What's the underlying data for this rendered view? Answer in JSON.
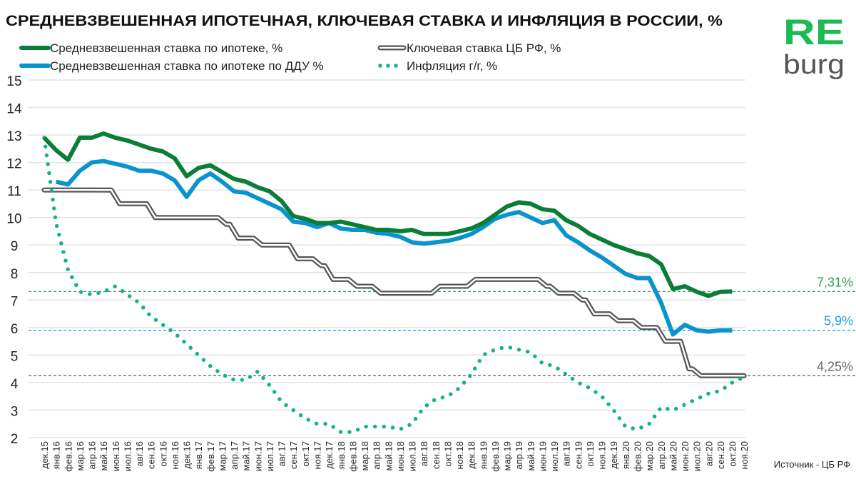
{
  "chart_data": {
    "type": "line",
    "title": "СРЕДНЕВЗВЕШЕННАЯ ИПОТЕЧНАЯ, КЛЮЧЕВАЯ СТАВКА И ИНФЛЯЦИЯ В РОССИИ, %",
    "source": "Источник  - ЦБ РФ",
    "logo": {
      "top": "RE",
      "bottom": "burg",
      "top_color": "#1db954",
      "bottom_color": "#555555"
    },
    "ylim": [
      2,
      15
    ],
    "yticks": [
      "2",
      "3",
      "4",
      "5",
      "6",
      "7",
      "8",
      "9",
      "10",
      "11",
      "12",
      "13",
      "14",
      "15"
    ],
    "grid": true,
    "legend_placement": "top-left",
    "categories": [
      "дек.15",
      "янв.16",
      "фев.16",
      "мар.16",
      "апр.16",
      "май.16",
      "июн.16",
      "июл.16",
      "авг.16",
      "сен.16",
      "окт.16",
      "ноя.16",
      "дек.16",
      "янв.17",
      "фев.17",
      "мар.17",
      "апр.17",
      "май.17",
      "июн.17",
      "июл.17",
      "авг.17",
      "сен.17",
      "окт.17",
      "ноя.17",
      "дек.17",
      "янв.18",
      "фев.18",
      "мар.18",
      "апр.18",
      "май.18",
      "июн.18",
      "июл.18",
      "авг.18",
      "сен.18",
      "окт.18",
      "ноя.18",
      "дек.18",
      "янв.19",
      "фев.19",
      "мар.19",
      "апр.19",
      "май.19",
      "июн.19",
      "июл.19",
      "авг.19",
      "сен.19",
      "окт.19",
      "ноя.19",
      "дек.19",
      "янв.20",
      "фев.20",
      "мар.20",
      "апр.20",
      "май.20",
      "июн.20",
      "июл.20",
      "авг.20",
      "сен.20",
      "окт.20",
      "ноя.20"
    ],
    "series": [
      {
        "name": "Средневзвешенная ставка по ипотеке, %",
        "color": "#0a7d36",
        "style": "solid",
        "values": [
          12.9,
          12.45,
          12.1,
          12.9,
          12.9,
          13.05,
          12.9,
          12.8,
          12.65,
          12.5,
          12.4,
          12.15,
          11.5,
          11.8,
          11.9,
          11.65,
          11.4,
          11.3,
          11.1,
          10.95,
          10.6,
          10.05,
          9.95,
          9.8,
          9.8,
          9.85,
          9.75,
          9.65,
          9.55,
          9.55,
          9.5,
          9.55,
          9.4,
          9.4,
          9.4,
          9.5,
          9.6,
          9.8,
          10.1,
          10.4,
          10.55,
          10.5,
          10.3,
          10.25,
          9.9,
          9.7,
          9.4,
          9.2,
          9.0,
          8.85,
          8.7,
          8.6,
          8.3,
          7.4,
          7.5,
          7.3,
          7.15,
          7.3,
          7.31,
          null
        ]
      },
      {
        "name": "Средневзвешенная ставка по ипотеке по ДДУ %",
        "color": "#0b93cc",
        "style": "solid",
        "values": [
          null,
          11.3,
          11.2,
          11.7,
          12.0,
          12.05,
          11.95,
          11.85,
          11.7,
          11.7,
          11.6,
          11.35,
          10.75,
          11.35,
          11.6,
          11.3,
          10.95,
          10.9,
          10.7,
          10.5,
          10.3,
          9.85,
          9.8,
          9.65,
          9.8,
          9.6,
          9.55,
          9.55,
          9.45,
          9.4,
          9.3,
          9.1,
          9.05,
          9.1,
          9.15,
          9.25,
          9.4,
          9.65,
          9.95,
          10.1,
          10.2,
          10.0,
          9.8,
          9.9,
          9.35,
          9.1,
          8.8,
          8.55,
          8.25,
          7.95,
          7.8,
          7.8,
          6.9,
          5.75,
          6.1,
          5.9,
          5.85,
          5.9,
          5.9,
          null
        ]
      },
      {
        "name": "Ключевая ставка ЦБ РФ, %",
        "color": "#555555",
        "style": "double",
        "values": [
          11,
          11,
          11,
          11,
          11,
          11,
          10.5,
          10.5,
          10.5,
          10,
          10,
          10,
          10,
          10,
          10,
          9.75,
          9.25,
          9.25,
          9,
          9,
          9,
          8.5,
          8.5,
          8.25,
          7.75,
          7.75,
          7.5,
          7.5,
          7.25,
          7.25,
          7.25,
          7.25,
          7.25,
          7.5,
          7.5,
          7.5,
          7.75,
          7.75,
          7.75,
          7.75,
          7.75,
          7.75,
          7.5,
          7.25,
          7.25,
          7,
          6.5,
          6.5,
          6.25,
          6.25,
          6,
          6,
          5.5,
          5.5,
          4.5,
          4.25,
          4.25,
          4.25,
          4.25,
          4.25
        ]
      },
      {
        "name": "Инфляция г/г,  %",
        "color": "#14b08f",
        "style": "dotted",
        "values": [
          12.9,
          9.8,
          8.1,
          7.3,
          7.2,
          7.3,
          7.5,
          7.2,
          6.9,
          6.4,
          6.1,
          5.8,
          5.4,
          5.0,
          4.6,
          4.3,
          4.1,
          4.1,
          4.4,
          3.9,
          3.3,
          3.0,
          2.7,
          2.5,
          2.5,
          2.2,
          2.2,
          2.4,
          2.4,
          2.4,
          2.3,
          2.5,
          3.1,
          3.4,
          3.5,
          3.8,
          4.3,
          5.0,
          5.2,
          5.3,
          5.2,
          5.1,
          4.7,
          4.6,
          4.3,
          4.0,
          3.8,
          3.5,
          3.0,
          2.4,
          2.3,
          2.5,
          3.1,
          3.0,
          3.2,
          3.4,
          3.6,
          3.7,
          4.0,
          4.2
        ]
      }
    ],
    "reference_lines": [
      {
        "value": 7.31,
        "label": "7,31%",
        "color": "#2e9e55"
      },
      {
        "value": 5.9,
        "label": "5,9%",
        "color": "#1ba3dd"
      },
      {
        "value": 4.25,
        "label": "4,25%",
        "color": "#666666"
      }
    ]
  }
}
